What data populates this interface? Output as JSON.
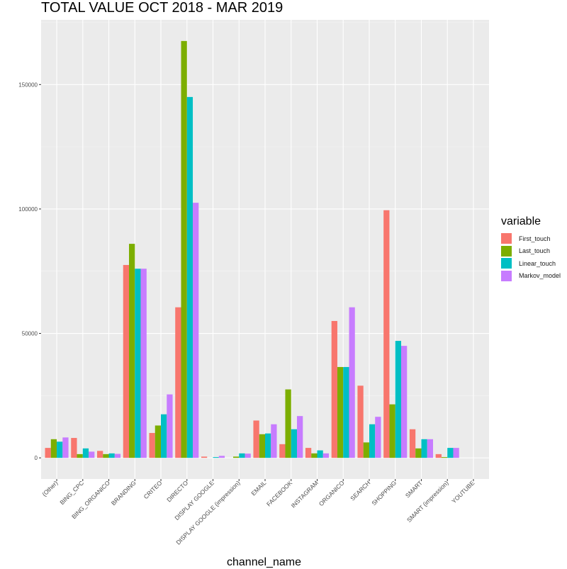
{
  "chart_data": {
    "type": "bar",
    "title": "TOTAL VALUE OCT 2018 - MAR 2019",
    "xlabel": "channel_name",
    "ylabel": "",
    "ylim": [
      -8500,
      176000
    ],
    "yticks": [
      0,
      50000,
      100000,
      150000
    ],
    "grid": true,
    "legend_title": "variable",
    "legend_position": "right",
    "categories": [
      "(Other)",
      "BING_CPC",
      "BING_ORGANICO",
      "BRANDING",
      "CRITEO",
      "DIRECTO",
      "DISPLAY GOOGLE",
      "DISPLAY GOOGLE (impression)",
      "EMAIL",
      "FACEBOOK",
      "INSTAGRAM",
      "ORGANICO",
      "SEARCH",
      "SHOPPING",
      "SMART",
      "SMART (impression)",
      "YOUTUBE"
    ],
    "series": [
      {
        "name": "First_touch",
        "color": "#F8766D",
        "values": [
          4000,
          8000,
          2800,
          77500,
          10000,
          60500,
          500,
          0,
          15000,
          5500,
          4000,
          55000,
          29000,
          99500,
          11500,
          1500,
          0
        ]
      },
      {
        "name": "Last_touch",
        "color": "#7CAE00",
        "values": [
          7500,
          1500,
          1500,
          86000,
          13000,
          167500,
          0,
          500,
          9500,
          27500,
          1800,
          36500,
          6200,
          21500,
          3800,
          300,
          0
        ]
      },
      {
        "name": "Linear_touch",
        "color": "#00BFC4",
        "values": [
          6500,
          3800,
          1800,
          76000,
          17500,
          145000,
          300,
          1800,
          9800,
          11500,
          3000,
          36500,
          13500,
          47000,
          7500,
          4000,
          0
        ]
      },
      {
        "name": "Markov_model",
        "color": "#C77CFF",
        "values": [
          8200,
          2500,
          1600,
          76000,
          25500,
          102500,
          800,
          1700,
          13500,
          16800,
          1800,
          60500,
          16500,
          45000,
          7500,
          4000,
          0
        ]
      }
    ]
  }
}
